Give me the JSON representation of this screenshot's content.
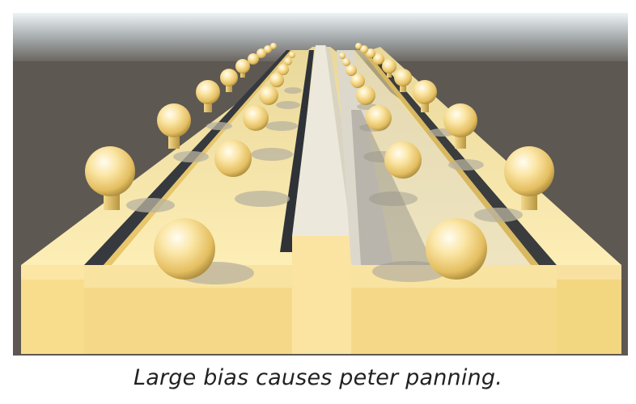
{
  "figure": {
    "caption": "Large bias causes peter panning.",
    "colors": {
      "sky_top": "#dfe6ea",
      "sky_bottom": "#8f9294",
      "ground": "#5e5852",
      "slab_top": "#fbe8a6",
      "slab_front": "#f7dc8a",
      "slab_side": "#e9c76e",
      "channel_shadow": "#2f3338",
      "sphere_light": "#fffbe8",
      "sphere_mid": "#f6d98a",
      "sphere_dark": "#a58a3e",
      "shadow": "#c9c3ae"
    }
  }
}
